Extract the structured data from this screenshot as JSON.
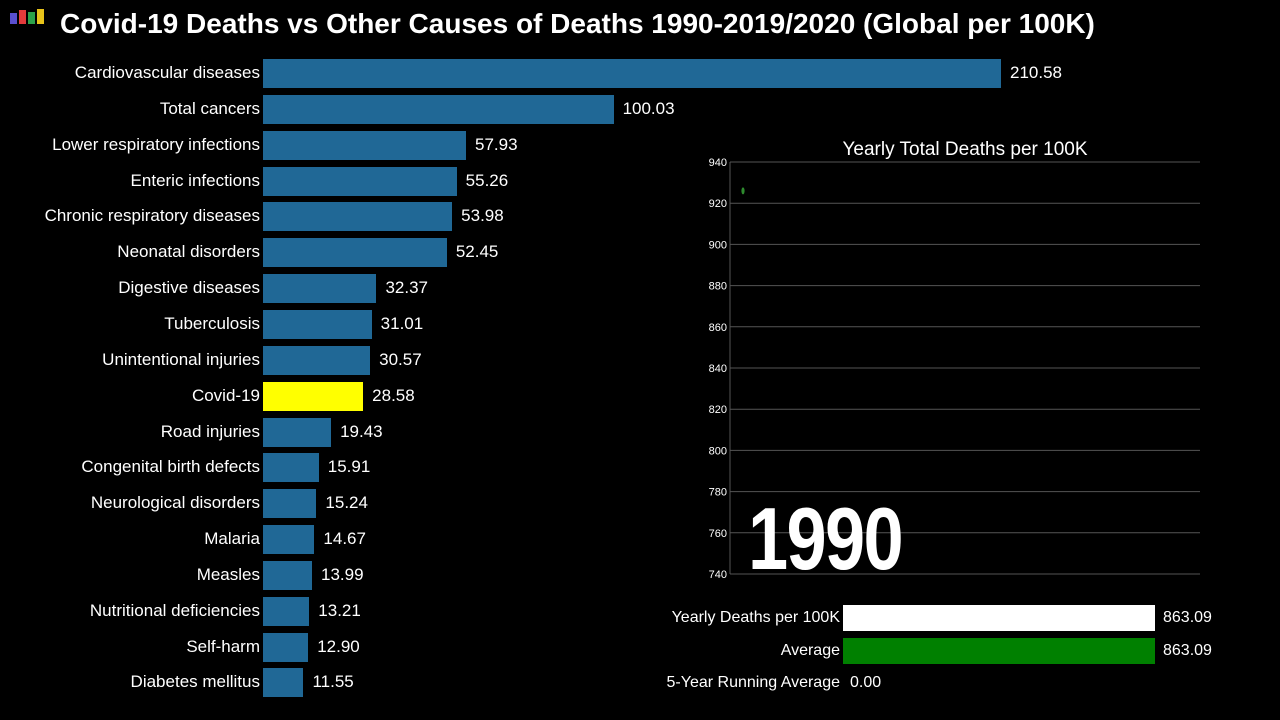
{
  "header": {
    "title": "Covid-19 Deaths vs Other Causes of Deaths 1990-2019/2020 (Global per 100K)"
  },
  "colors": {
    "default_bar": "#206896",
    "highlight_bar": "#ffff00",
    "yearly_bar": "#ffffff",
    "average_bar": "#008000",
    "average_point": "#2e8b2e",
    "grid": "#555555"
  },
  "chart_data": [
    {
      "type": "bar",
      "orientation": "horizontal",
      "title": "",
      "categories": [
        "Cardiovascular diseases",
        "Total cancers",
        "Lower respiratory infections",
        "Enteric infections",
        "Chronic respiratory diseases",
        "Neonatal disorders",
        "Digestive diseases",
        "Tuberculosis",
        "Unintentional injuries",
        "Covid-19",
        "Road injuries",
        "Congenital birth defects",
        "Neurological disorders",
        "Malaria",
        "Measles",
        "Nutritional deficiencies",
        "Self-harm",
        "Diabetes mellitus"
      ],
      "values": [
        210.58,
        100.03,
        57.93,
        55.26,
        53.98,
        52.45,
        32.37,
        31.01,
        30.57,
        28.58,
        19.43,
        15.91,
        15.24,
        14.67,
        13.99,
        13.21,
        12.9,
        11.55
      ],
      "value_labels": [
        "210.58",
        "100.03",
        "57.93",
        "55.26",
        "53.98",
        "52.45",
        "32.37",
        "31.01",
        "30.57",
        "28.58",
        "19.43",
        "15.91",
        "15.24",
        "14.67",
        "13.99",
        "13.21",
        "12.90",
        "11.55"
      ],
      "highlight": "Covid-19",
      "xlim": [
        0,
        210.58
      ]
    },
    {
      "type": "line",
      "title": "Yearly Total Deaths per 100K",
      "xlabel": "",
      "ylabel": "",
      "ylim": [
        740,
        940
      ],
      "yticks": [
        740,
        760,
        780,
        800,
        820,
        840,
        860,
        880,
        900,
        920,
        940
      ],
      "grid": true,
      "x": [
        1990
      ],
      "series": [
        {
          "name": "Average",
          "values": [
            926
          ]
        }
      ]
    },
    {
      "type": "bar",
      "orientation": "horizontal",
      "title": "",
      "categories": [
        "Yearly Deaths per 100K",
        "Average"
      ],
      "values": [
        863.09,
        863.09
      ],
      "value_labels": [
        "863.09",
        "863.09"
      ],
      "xlim": [
        0,
        863.09
      ]
    }
  ],
  "year": "1990",
  "running_average": {
    "label": "5-Year Running Average",
    "value": "0.00"
  }
}
